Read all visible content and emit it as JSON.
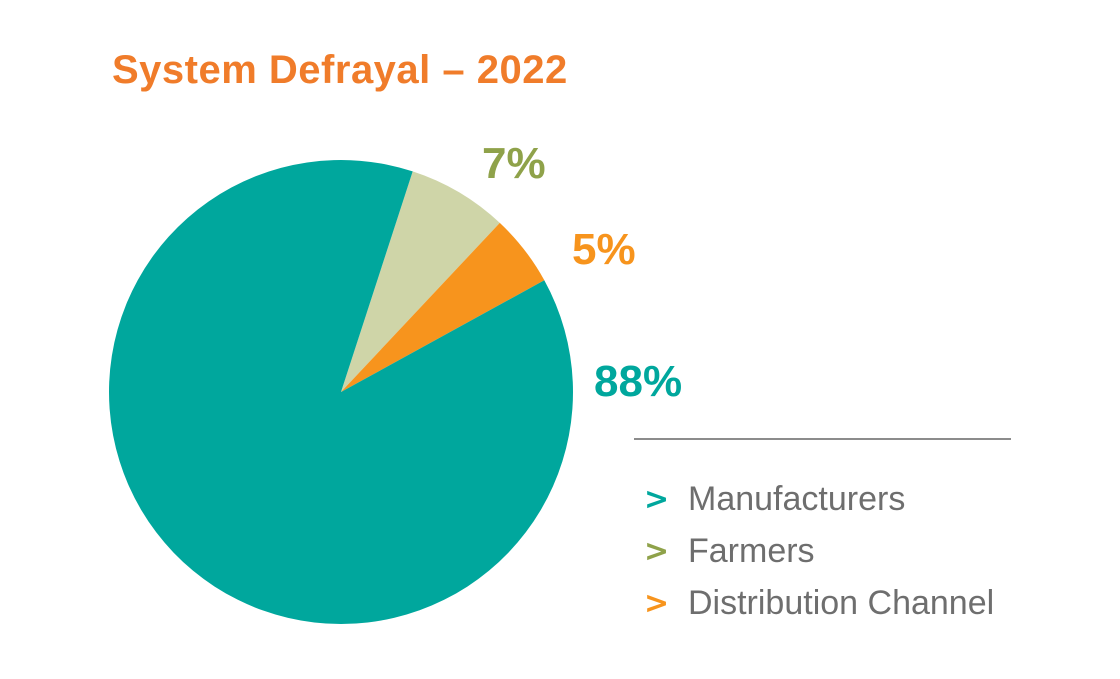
{
  "chart_data": {
    "type": "pie",
    "title": "System Defrayal  – 2022",
    "slices": [
      {
        "label": "Manufacturers",
        "value": 88,
        "display": "88%",
        "color": "#00a79d"
      },
      {
        "label": "Farmers",
        "value": 7,
        "display": "7%",
        "color": "#cfd5a8",
        "label_color": "#8fa24a"
      },
      {
        "label": "Distribution Channel",
        "value": 5,
        "display": "5%",
        "color": "#f7941d"
      }
    ],
    "legend": {
      "placement": "bottom-right",
      "marker": ">",
      "entries": [
        {
          "label": "Manufacturers",
          "color": "#00a79d"
        },
        {
          "label": "Farmers",
          "color": "#8fa24a"
        },
        {
          "label": "Distribution Channel",
          "color": "#f7941d"
        }
      ]
    }
  }
}
